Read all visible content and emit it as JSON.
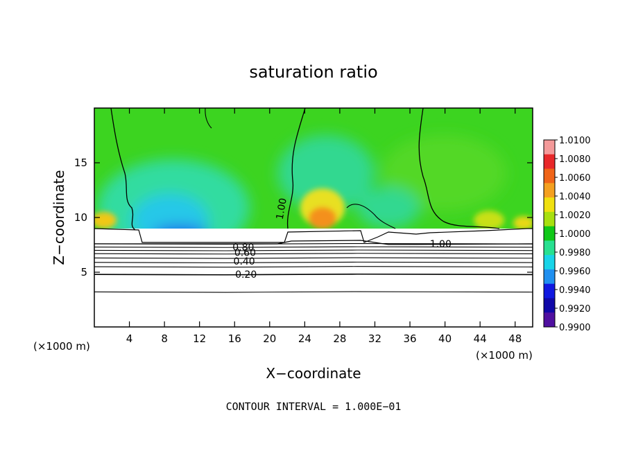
{
  "chart_data": {
    "type": "heatmap",
    "title": "saturation ratio",
    "xlabel": "X−coordinate",
    "ylabel": "Z−coordinate",
    "x_unit": "(×1000 m)",
    "x_unit_right": "(×1000 m)",
    "xlim": [
      0,
      50
    ],
    "ylim": [
      0,
      20
    ],
    "x_ticks": [
      4,
      8,
      12,
      16,
      20,
      24,
      28,
      32,
      36,
      40,
      44,
      48
    ],
    "y_ticks": [
      5,
      10,
      15
    ],
    "footer": "CONTOUR INTERVAL = 1.000E−01",
    "colorbar": {
      "labels": [
        "1.0100",
        "1.0080",
        "1.0060",
        "1.0040",
        "1.0020",
        "1.0000",
        "0.9980",
        "0.9960",
        "0.9940",
        "0.9920",
        "0.9900"
      ],
      "colors": [
        "#f49a9a",
        "#e8282a",
        "#f06418",
        "#f4a020",
        "#f0e010",
        "#a8e010",
        "#10c818",
        "#28e090",
        "#18d4e8",
        "#2090f0",
        "#1018e0",
        "#1008a8",
        "#5010a0"
      ]
    },
    "contour_labels": [
      {
        "text": "1.00",
        "x": 21.3,
        "y": 10.8
      },
      {
        "text": "1.00",
        "x": 39.5,
        "y": 7.6
      },
      {
        "text": "0.80",
        "x": 17.0,
        "y": 7.3
      },
      {
        "text": "0.60",
        "x": 17.2,
        "y": 6.8
      },
      {
        "text": "0.40",
        "x": 17.1,
        "y": 6.0
      },
      {
        "text": "0.20",
        "x": 17.3,
        "y": 4.8
      }
    ],
    "contour_levels_z": [
      3.2,
      4.8,
      5.5,
      5.9,
      6.3,
      6.7,
      7.0,
      7.3,
      7.6
    ],
    "cloud_layer": {
      "base_z": 7.6,
      "top_z": 8.9
    }
  }
}
